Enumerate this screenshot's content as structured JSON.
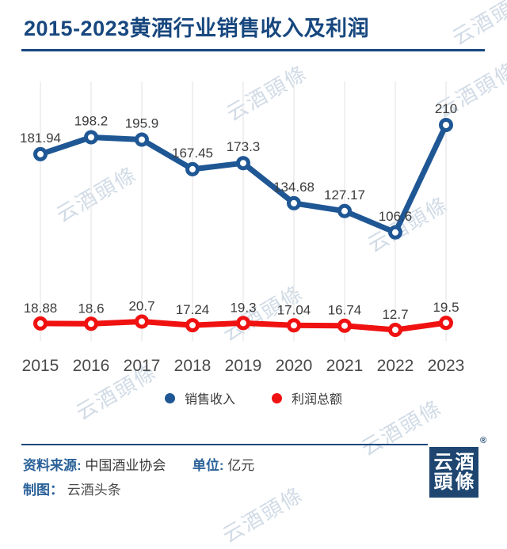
{
  "title": "2015-2023黄酒行业销售收入及利润",
  "watermark_text": "云酒頭條",
  "chart_data": {
    "type": "line",
    "categories": [
      "2015",
      "2016",
      "2017",
      "2018",
      "2019",
      "2020",
      "2021",
      "2022",
      "2023"
    ],
    "series": [
      {
        "name": "销售收入",
        "color": "#1f5795",
        "values": [
          181.94,
          198.2,
          195.9,
          167.45,
          173.3,
          134.68,
          127.17,
          106.6,
          210
        ]
      },
      {
        "name": "利润总额",
        "color": "#f01111",
        "values": [
          18.88,
          18.6,
          20.7,
          17.24,
          19.3,
          17.04,
          16.74,
          12.7,
          19.5
        ]
      }
    ],
    "title": "2015-2023黄酒行业销售收入及利润",
    "xlabel": "",
    "ylabel": "",
    "unit": "亿元",
    "ylim": [
      0,
      250
    ],
    "grid": "vertical-only",
    "legend_position": "bottom",
    "data_labels": true
  },
  "legend": {
    "items": [
      {
        "label": "销售收入",
        "color": "#1f5795"
      },
      {
        "label": "利润总额",
        "color": "#f01111"
      }
    ]
  },
  "footer": {
    "source_label": "资料来源:",
    "source_value": "中国酒业协会",
    "unit_label": "单位:",
    "unit_value": "亿元",
    "credit_label": "制图：",
    "credit_value": "云酒头条",
    "logo_line1": "云酒",
    "logo_line2": "頭條",
    "registered_mark": "®"
  },
  "colors": {
    "title_navy": "#17477e",
    "series_blue": "#1f5795",
    "series_red": "#f01111",
    "gridline": "#e7e7e7",
    "data_label": "#3c3c3c",
    "axis_label": "#4a4a4a",
    "watermark": "#c9d5e2",
    "logo_bg": "#1e4670"
  }
}
